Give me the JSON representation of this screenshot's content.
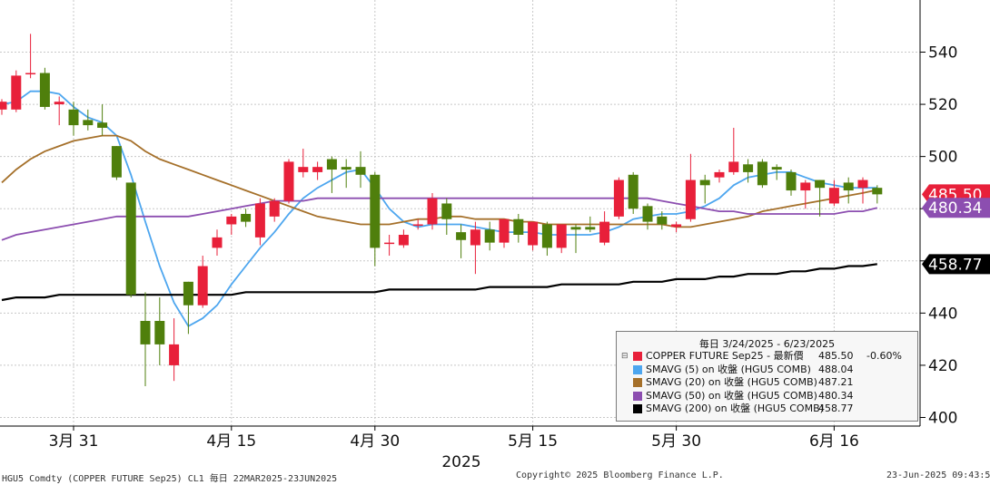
{
  "chart_data": {
    "type": "candlestick",
    "y_ticks": [
      400,
      420,
      440,
      460,
      480,
      500,
      520,
      540
    ],
    "ylim": [
      397,
      550
    ],
    "x_ticks": [
      "3月 31",
      "4月 15",
      "4月 30",
      "5月 15",
      "5月 30",
      "6月 16"
    ],
    "year_label": "2025",
    "candles": [
      {
        "o": 518,
        "h": 522,
        "l": 516,
        "c": 521
      },
      {
        "o": 518,
        "h": 533,
        "l": 517,
        "c": 531
      },
      {
        "o": 532,
        "h": 547,
        "l": 530,
        "c": 532
      },
      {
        "o": 532,
        "h": 534,
        "l": 518,
        "c": 519
      },
      {
        "o": 520,
        "h": 523,
        "l": 512,
        "c": 521
      },
      {
        "o": 518,
        "h": 521,
        "l": 508,
        "c": 512
      },
      {
        "o": 514,
        "h": 518,
        "l": 510,
        "c": 512
      },
      {
        "o": 513,
        "h": 520,
        "l": 508,
        "c": 511
      },
      {
        "o": 504,
        "h": 504,
        "l": 491,
        "c": 492
      },
      {
        "o": 490,
        "h": 490,
        "l": 446,
        "c": 447
      },
      {
        "o": 437,
        "h": 448,
        "l": 412,
        "c": 428
      },
      {
        "o": 437,
        "h": 446,
        "l": 420,
        "c": 428
      },
      {
        "o": 420,
        "h": 438,
        "l": 414,
        "c": 428
      },
      {
        "o": 452,
        "h": 452,
        "l": 432,
        "c": 443
      },
      {
        "o": 443,
        "h": 462,
        "l": 442,
        "c": 458
      },
      {
        "o": 465,
        "h": 472,
        "l": 462,
        "c": 469
      },
      {
        "o": 474,
        "h": 478,
        "l": 470,
        "c": 477
      },
      {
        "o": 478,
        "h": 480,
        "l": 473,
        "c": 475
      },
      {
        "o": 469,
        "h": 484,
        "l": 466,
        "c": 482
      },
      {
        "o": 477,
        "h": 484,
        "l": 475,
        "c": 483
      },
      {
        "o": 483,
        "h": 499,
        "l": 482,
        "c": 498
      },
      {
        "o": 494,
        "h": 503,
        "l": 492,
        "c": 496
      },
      {
        "o": 494,
        "h": 498,
        "l": 491,
        "c": 496
      },
      {
        "o": 499,
        "h": 500,
        "l": 486,
        "c": 495
      },
      {
        "o": 496,
        "h": 499,
        "l": 488,
        "c": 495
      },
      {
        "o": 496,
        "h": 502,
        "l": 488,
        "c": 493
      },
      {
        "o": 493,
        "h": 494,
        "l": 458,
        "c": 465
      },
      {
        "o": 467,
        "h": 470,
        "l": 462,
        "c": 467
      },
      {
        "o": 466,
        "h": 472,
        "l": 465,
        "c": 470
      },
      {
        "o": 474,
        "h": 476,
        "l": 472,
        "c": 474
      },
      {
        "o": 474,
        "h": 486,
        "l": 472,
        "c": 484
      },
      {
        "o": 482,
        "h": 484,
        "l": 470,
        "c": 476
      },
      {
        "o": 471,
        "h": 474,
        "l": 461,
        "c": 468
      },
      {
        "o": 466,
        "h": 475,
        "l": 455,
        "c": 472
      },
      {
        "o": 472,
        "h": 475,
        "l": 464,
        "c": 467
      },
      {
        "o": 467,
        "h": 476,
        "l": 465,
        "c": 476
      },
      {
        "o": 476,
        "h": 478,
        "l": 467,
        "c": 470
      },
      {
        "o": 466,
        "h": 474,
        "l": 464,
        "c": 475
      },
      {
        "o": 474,
        "h": 475,
        "l": 462,
        "c": 465
      },
      {
        "o": 465,
        "h": 474,
        "l": 463,
        "c": 474
      },
      {
        "o": 473,
        "h": 474,
        "l": 463,
        "c": 472
      },
      {
        "o": 473,
        "h": 477,
        "l": 471,
        "c": 472
      },
      {
        "o": 467,
        "h": 479,
        "l": 466,
        "c": 475
      },
      {
        "o": 477,
        "h": 492,
        "l": 476,
        "c": 491
      },
      {
        "o": 493,
        "h": 494,
        "l": 478,
        "c": 480
      },
      {
        "o": 481,
        "h": 482,
        "l": 472,
        "c": 475
      },
      {
        "o": 477,
        "h": 479,
        "l": 472,
        "c": 474
      },
      {
        "o": 473,
        "h": 475,
        "l": 471,
        "c": 474
      },
      {
        "o": 476,
        "h": 501,
        "l": 475,
        "c": 491
      },
      {
        "o": 491,
        "h": 493,
        "l": 482,
        "c": 489
      },
      {
        "o": 492,
        "h": 495,
        "l": 490,
        "c": 494
      },
      {
        "o": 494,
        "h": 511,
        "l": 493,
        "c": 498
      },
      {
        "o": 497,
        "h": 499,
        "l": 490,
        "c": 494
      },
      {
        "o": 498,
        "h": 499,
        "l": 488,
        "c": 489
      },
      {
        "o": 496,
        "h": 497,
        "l": 491,
        "c": 495
      },
      {
        "o": 494,
        "h": 495,
        "l": 485,
        "c": 487
      },
      {
        "o": 487,
        "h": 491,
        "l": 480,
        "c": 490
      },
      {
        "o": 491,
        "h": 491,
        "l": 477,
        "c": 488
      },
      {
        "o": 482,
        "h": 491,
        "l": 481,
        "c": 488
      },
      {
        "o": 490,
        "h": 492,
        "l": 482,
        "c": 487
      },
      {
        "o": 488,
        "h": 492,
        "l": 482,
        "c": 491
      },
      {
        "o": 488,
        "h": 489,
        "l": 482,
        "c": 485.5
      }
    ],
    "series": [
      {
        "name": "SMAVG (5)",
        "color": "#4da6ef",
        "values": [
          520,
          521,
          525,
          525,
          524,
          519,
          515,
          513,
          508,
          493,
          475,
          458,
          444,
          435,
          438,
          443,
          451,
          458,
          465,
          471,
          478,
          484,
          488,
          491,
          494,
          495,
          488,
          480,
          475,
          473,
          474,
          474,
          474,
          473,
          472,
          471,
          471,
          471,
          470,
          470,
          470,
          470,
          471,
          473,
          476,
          477,
          478,
          478,
          479,
          481,
          484,
          489,
          492,
          493,
          494,
          494,
          492,
          490,
          489,
          488,
          488,
          488.04
        ]
      },
      {
        "name": "SMAVG (20)",
        "color": "#a5702a",
        "values": [
          490,
          495,
          499,
          502,
          504,
          506,
          507,
          508,
          508,
          506,
          502,
          499,
          497,
          495,
          493,
          491,
          489,
          487,
          485,
          483,
          481,
          479,
          477,
          476,
          475,
          474,
          474,
          474,
          475,
          476,
          476,
          477,
          477,
          476,
          476,
          476,
          475,
          475,
          474,
          474,
          474,
          474,
          474,
          474,
          474,
          474,
          474,
          473,
          473,
          474,
          475,
          476,
          477,
          479,
          480,
          481,
          482,
          483,
          484,
          485,
          486,
          487.21
        ]
      },
      {
        "name": "SMAVG (50)",
        "color": "#8c4eb0",
        "values": [
          468,
          470,
          471,
          472,
          473,
          474,
          475,
          476,
          477,
          477,
          477,
          477,
          477,
          477,
          478,
          479,
          480,
          481,
          482,
          483,
          483,
          483,
          484,
          484,
          484,
          484,
          484,
          484,
          484,
          484,
          484,
          484,
          484,
          484,
          484,
          484,
          484,
          484,
          484,
          484,
          484,
          484,
          484,
          484,
          484,
          484,
          483,
          482,
          481,
          480,
          479,
          479,
          478,
          478,
          478,
          478,
          478,
          478,
          478,
          479,
          479,
          480.34
        ]
      },
      {
        "name": "SMAVG (200)",
        "color": "#000000",
        "values": [
          445,
          446,
          446,
          446,
          447,
          447,
          447,
          447,
          447,
          447,
          447,
          447,
          447,
          447,
          447,
          447,
          447,
          448,
          448,
          448,
          448,
          448,
          448,
          448,
          448,
          448,
          448,
          449,
          449,
          449,
          449,
          449,
          449,
          449,
          450,
          450,
          450,
          450,
          450,
          451,
          451,
          451,
          451,
          451,
          452,
          452,
          452,
          453,
          453,
          453,
          454,
          454,
          455,
          455,
          455,
          456,
          456,
          457,
          457,
          458,
          458,
          458.77
        ]
      }
    ],
    "price_tags": [
      {
        "value": 485.5,
        "label": "485.50",
        "bg": "#e8203a",
        "fg": "#ffffff"
      },
      {
        "value": 480.34,
        "label": "480.34",
        "bg": "#8c4eb0",
        "fg": "#ffffff"
      },
      {
        "value": 458.77,
        "label": "458.77",
        "bg": "#000000",
        "fg": "#ffffff"
      }
    ],
    "colors": {
      "up": "#4f7f0c",
      "down": "#e8203a",
      "grid": "#c8c8c8"
    }
  },
  "legend": {
    "title": "毎日 3/24/2025 - 6/23/2025",
    "rows": [
      {
        "toggle": "⊟",
        "swatch": "#e8203a",
        "label": "COPPER FUTURE Sep25 - 最新價",
        "value": "485.50",
        "change": "-0.60%"
      },
      {
        "toggle": "",
        "swatch": "#4da6ef",
        "label": "SMAVG (5)  on 收盤 (HGU5 COMB)",
        "value": "488.04",
        "change": ""
      },
      {
        "toggle": "",
        "swatch": "#a5702a",
        "label": "SMAVG (20)  on 收盤 (HGU5 COMB)",
        "value": "487.21",
        "change": ""
      },
      {
        "toggle": "",
        "swatch": "#8c4eb0",
        "label": "SMAVG (50)  on 收盤 (HGU5 COMB)",
        "value": "480.34",
        "change": ""
      },
      {
        "toggle": "",
        "swatch": "#000000",
        "label": "SMAVG (200)  on 收盤 (HGU5 COMB)",
        "value": "458.77",
        "change": ""
      }
    ]
  },
  "footer": {
    "left": "HGU5 Comdty (COPPER FUTURE    Sep25) CL1  毎日 22MAR2025-23JUN2025",
    "center": "Copyright© 2025 Bloomberg Finance L.P.",
    "right": "23-Jun-2025 09:43:52"
  }
}
